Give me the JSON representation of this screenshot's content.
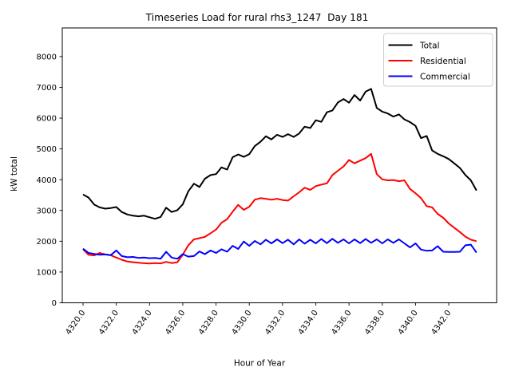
{
  "chart_data": {
    "type": "line",
    "title": "Timeseries Load for rural rhs3_1247  Day 181",
    "xlabel": "Hour of Year",
    "ylabel": "kW total",
    "xlim": [
      4318.75,
      4344.88
    ],
    "ylim": [
      0,
      8930
    ],
    "grid": false,
    "legend_position": "upper right",
    "xtick_labels": [
      "4320.0",
      "4322.0",
      "4324.0",
      "4326.0",
      "4328.0",
      "4330.0",
      "4332.0",
      "4334.0",
      "4336.0",
      "4338.0",
      "4340.0",
      "4342.0"
    ],
    "xtick_values": [
      4320,
      4322,
      4324,
      4326,
      4328,
      4330,
      4332,
      4334,
      4336,
      4338,
      4340,
      4342
    ],
    "ytick_labels": [
      "0",
      "1000",
      "2000",
      "3000",
      "4000",
      "5000",
      "6000",
      "7000",
      "8000"
    ],
    "ytick_values": [
      0,
      1000,
      2000,
      3000,
      4000,
      5000,
      6000,
      7000,
      8000
    ],
    "x": [
      4320.0,
      4320.33,
      4320.67,
      4321.0,
      4321.33,
      4321.67,
      4322.0,
      4322.33,
      4322.67,
      4323.0,
      4323.33,
      4323.67,
      4324.0,
      4324.33,
      4324.67,
      4325.0,
      4325.33,
      4325.67,
      4326.0,
      4326.33,
      4326.67,
      4327.0,
      4327.33,
      4327.67,
      4328.0,
      4328.33,
      4328.67,
      4329.0,
      4329.33,
      4329.67,
      4330.0,
      4330.33,
      4330.67,
      4331.0,
      4331.33,
      4331.67,
      4332.0,
      4332.33,
      4332.67,
      4333.0,
      4333.33,
      4333.67,
      4334.0,
      4334.33,
      4334.67,
      4335.0,
      4335.33,
      4335.67,
      4336.0,
      4336.33,
      4336.67,
      4337.0,
      4337.33,
      4337.67,
      4338.0,
      4338.33,
      4338.67,
      4339.0,
      4339.33,
      4339.67,
      4340.0,
      4340.33,
      4340.67,
      4341.0,
      4341.33,
      4341.67,
      4342.0,
      4342.33,
      4342.67,
      4343.0,
      4343.33,
      4343.67
    ],
    "series": [
      {
        "name": "Total",
        "color": "#000000",
        "values": [
          3520,
          3420,
          3190,
          3100,
          3060,
          3080,
          3110,
          2950,
          2870,
          2830,
          2810,
          2830,
          2780,
          2730,
          2790,
          3090,
          2950,
          3010,
          3200,
          3620,
          3870,
          3760,
          4030,
          4150,
          4180,
          4400,
          4330,
          4730,
          4820,
          4740,
          4830,
          5090,
          5230,
          5410,
          5310,
          5460,
          5390,
          5480,
          5390,
          5500,
          5720,
          5680,
          5930,
          5880,
          6190,
          6250,
          6510,
          6620,
          6500,
          6750,
          6570,
          6860,
          6950,
          6330,
          6210,
          6150,
          6050,
          6120,
          5960,
          5870,
          5750,
          5350,
          5420,
          4950,
          4840,
          4760,
          4670,
          4530,
          4380,
          4150,
          3980,
          3650
        ]
      },
      {
        "name": "Residential",
        "color": "#ff0000",
        "values": [
          1740,
          1560,
          1540,
          1620,
          1570,
          1545,
          1470,
          1400,
          1340,
          1320,
          1300,
          1285,
          1275,
          1290,
          1280,
          1330,
          1290,
          1320,
          1560,
          1870,
          2060,
          2100,
          2140,
          2260,
          2380,
          2600,
          2720,
          2960,
          3180,
          3020,
          3120,
          3350,
          3400,
          3380,
          3350,
          3380,
          3340,
          3320,
          3460,
          3590,
          3740,
          3670,
          3790,
          3840,
          3880,
          4150,
          4290,
          4430,
          4640,
          4530,
          4620,
          4700,
          4840,
          4180,
          4010,
          3980,
          3990,
          3950,
          3980,
          3700,
          3560,
          3400,
          3140,
          3100,
          2890,
          2760,
          2580,
          2440,
          2300,
          2150,
          2050,
          2000
        ]
      },
      {
        "name": "Commercial",
        "color": "#0000ff",
        "values": [
          1760,
          1620,
          1590,
          1560,
          1570,
          1550,
          1700,
          1520,
          1480,
          1490,
          1460,
          1470,
          1450,
          1460,
          1430,
          1660,
          1470,
          1430,
          1580,
          1500,
          1520,
          1670,
          1580,
          1700,
          1620,
          1740,
          1660,
          1850,
          1750,
          1990,
          1850,
          2010,
          1900,
          2050,
          1930,
          2060,
          1940,
          2050,
          1900,
          2060,
          1920,
          2050,
          1930,
          2070,
          1940,
          2080,
          1950,
          2060,
          1930,
          2060,
          1940,
          2070,
          1950,
          2060,
          1930,
          2060,
          1950,
          2060,
          1930,
          1800,
          1930,
          1730,
          1690,
          1700,
          1840,
          1660,
          1650,
          1650,
          1660,
          1870,
          1890,
          1630
        ]
      }
    ]
  }
}
